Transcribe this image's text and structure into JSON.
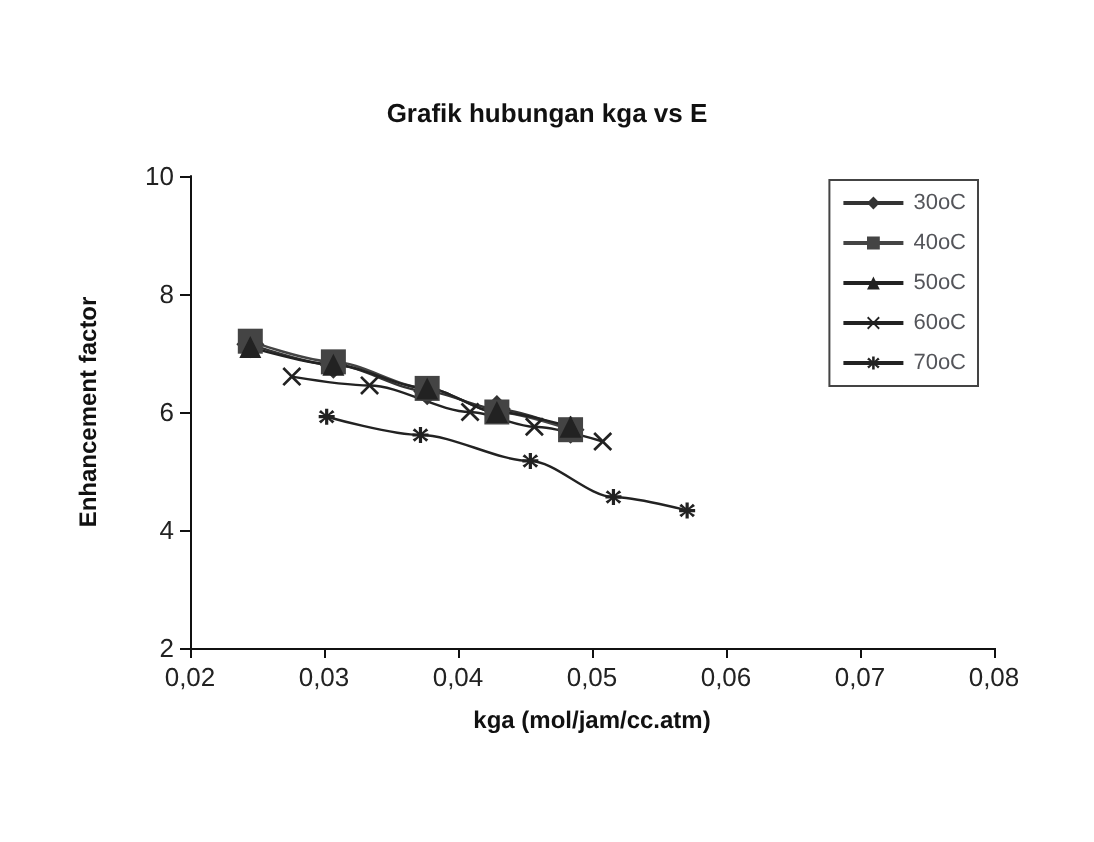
{
  "chart_data": {
    "type": "line",
    "title": "Grafik hubungan kga vs E",
    "xlabel": "kga (mol/jam/cc.atm)",
    "ylabel": "Enhancement factor",
    "xlim": [
      0.02,
      0.08
    ],
    "xticks": [
      {
        "value": 0.02,
        "label": "0,02"
      },
      {
        "value": 0.03,
        "label": "0,03"
      },
      {
        "value": 0.04,
        "label": "0,04"
      },
      {
        "value": 0.05,
        "label": "0,05"
      },
      {
        "value": 0.06,
        "label": "0,06"
      },
      {
        "value": 0.07,
        "label": "0,07"
      },
      {
        "value": 0.08,
        "label": "0,08"
      }
    ],
    "ylim": [
      2,
      10
    ],
    "yticks": [
      2,
      4,
      6,
      8,
      10
    ],
    "grid": false,
    "legend": "top right",
    "line_style": "solid",
    "series": [
      {
        "name": "30oC",
        "color": "#333333",
        "marker": "diamond",
        "x": [
          0.0245,
          0.0307,
          0.0377,
          0.0429,
          0.0484
        ],
        "values": [
          7.15,
          6.8,
          6.35,
          6.05,
          5.7
        ]
      },
      {
        "name": "40oC",
        "color": "#444444",
        "marker": "square",
        "x": [
          0.0245,
          0.0307,
          0.0377,
          0.0429,
          0.0484
        ],
        "values": [
          7.2,
          6.85,
          6.4,
          6.0,
          5.7
        ]
      },
      {
        "name": "50oC",
        "color": "#222222",
        "marker": "triangle",
        "x": [
          0.0245,
          0.0307,
          0.0377,
          0.0429,
          0.0484
        ],
        "values": [
          7.1,
          6.8,
          6.4,
          6.0,
          5.75
        ]
      },
      {
        "name": "60oC",
        "color": "#222222",
        "marker": "cross",
        "x": [
          0.0276,
          0.0334,
          0.0409,
          0.0457,
          0.0508
        ],
        "values": [
          6.6,
          6.45,
          6.0,
          5.75,
          5.5
        ]
      },
      {
        "name": "70oC",
        "color": "#222222",
        "marker": "star",
        "x": [
          0.0302,
          0.0372,
          0.0454,
          0.0516,
          0.0571
        ],
        "values": [
          5.92,
          5.61,
          5.17,
          4.56,
          4.33
        ]
      }
    ]
  }
}
